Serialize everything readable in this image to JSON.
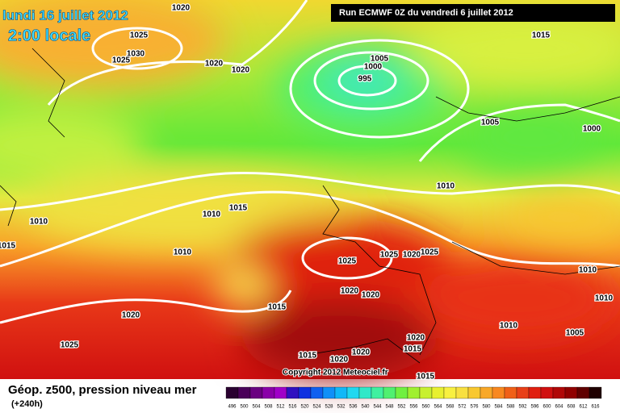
{
  "header": {
    "date": "lundi 16 juillet 2012",
    "time": "2:00 locale",
    "run": "Run ECMWF 0Z du vendredi 6 juillet 2012",
    "copyright": "Copyright 2012 Meteociel.fr"
  },
  "footer": {
    "title": "Géop. z500, pression niveau mer",
    "lead": "(+240h)"
  },
  "isobar_labels": [
    "1020",
    "1025",
    "1030",
    "1025",
    "1020",
    "1020",
    "1005",
    "1000",
    "995",
    "1015",
    "1005",
    "1000",
    "1010",
    "1010",
    "1015",
    "1010",
    "1015",
    "1010",
    "1025",
    "1025",
    "1020",
    "1025",
    "1010",
    "1015",
    "1020",
    "1020",
    "1020",
    "1010",
    "1010",
    "1005",
    "1025",
    "1020",
    "1015",
    "1020",
    "1015",
    "1020",
    "1015"
  ],
  "scale": {
    "values": [
      496,
      500,
      504,
      508,
      512,
      516,
      520,
      524,
      528,
      532,
      536,
      540,
      544,
      548,
      552,
      556,
      560,
      564,
      568,
      572,
      576,
      580,
      584,
      588,
      592,
      596,
      600,
      604,
      608,
      612,
      616
    ],
    "colors": [
      "#2a0030",
      "#4a0058",
      "#6a0080",
      "#8a00a8",
      "#a000c8",
      "#3010c0",
      "#1030e0",
      "#1060f0",
      "#1090f8",
      "#10b8f8",
      "#20d8f0",
      "#30e8c8",
      "#40f0a0",
      "#50f070",
      "#70f040",
      "#a0f030",
      "#c8f030",
      "#e8f030",
      "#f8f040",
      "#f8e040",
      "#f8c830",
      "#f8a828",
      "#f88820",
      "#f06018",
      "#e84018",
      "#e02010",
      "#d01010",
      "#b00808",
      "#900000",
      "#600000",
      "#200000"
    ]
  }
}
